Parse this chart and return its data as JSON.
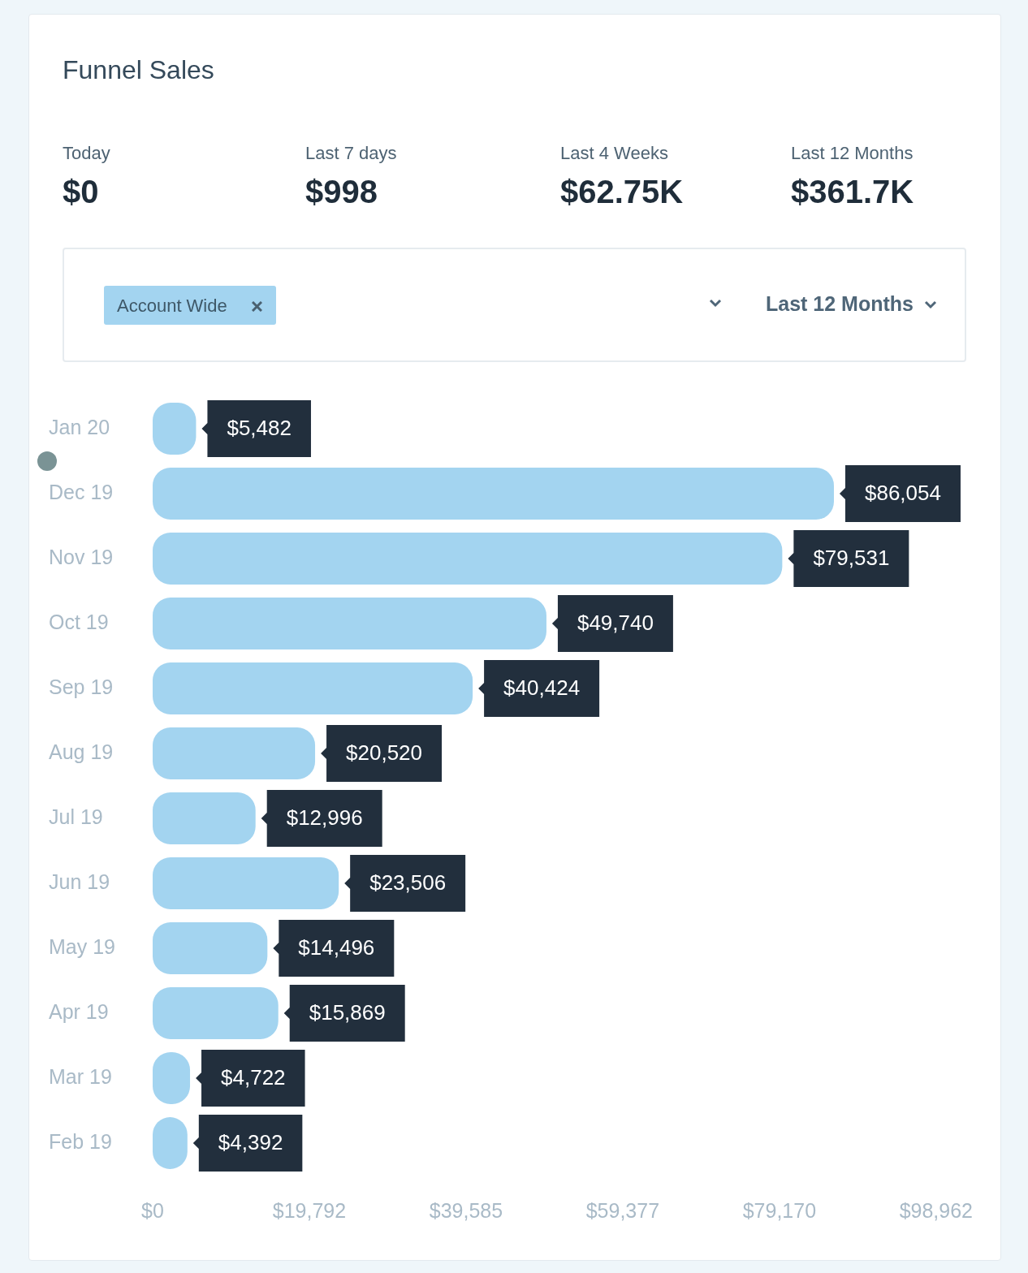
{
  "chart_data": {
    "type": "bar",
    "orientation": "horizontal",
    "title": "Funnel Sales",
    "categories": [
      "Jan 20",
      "Dec 19",
      "Nov 19",
      "Oct 19",
      "Sep 19",
      "Aug 19",
      "Jul 19",
      "Jun 19",
      "May 19",
      "Apr 19",
      "Mar 19",
      "Feb 19"
    ],
    "values": [
      5482,
      86054,
      79531,
      49740,
      40424,
      20520,
      12996,
      23506,
      14496,
      15869,
      4722,
      4392
    ],
    "value_labels": [
      "$5,482",
      "$86,054",
      "$79,531",
      "$49,740",
      "$40,424",
      "$20,520",
      "$12,996",
      "$23,506",
      "$14,496",
      "$15,869",
      "$4,722",
      "$4,392"
    ],
    "color": "#a3d4f0",
    "xlim": [
      0,
      98962
    ],
    "xticks": [
      {
        "value": 0,
        "label": "$0"
      },
      {
        "value": 19792,
        "label": "$19,792"
      },
      {
        "value": 39585,
        "label": "$39,585"
      },
      {
        "value": 59377,
        "label": "$59,377"
      },
      {
        "value": 79170,
        "label": "$79,170"
      },
      {
        "value": 98962,
        "label": "$98,962"
      }
    ],
    "annotations": [
      "Today",
      "$0",
      "Last 7 days",
      "$998",
      "Last 4 Weeks",
      "$62.75K",
      "Last 12 Months",
      "$361.7K",
      "Account Wide",
      "Last 12 Months"
    ]
  }
}
